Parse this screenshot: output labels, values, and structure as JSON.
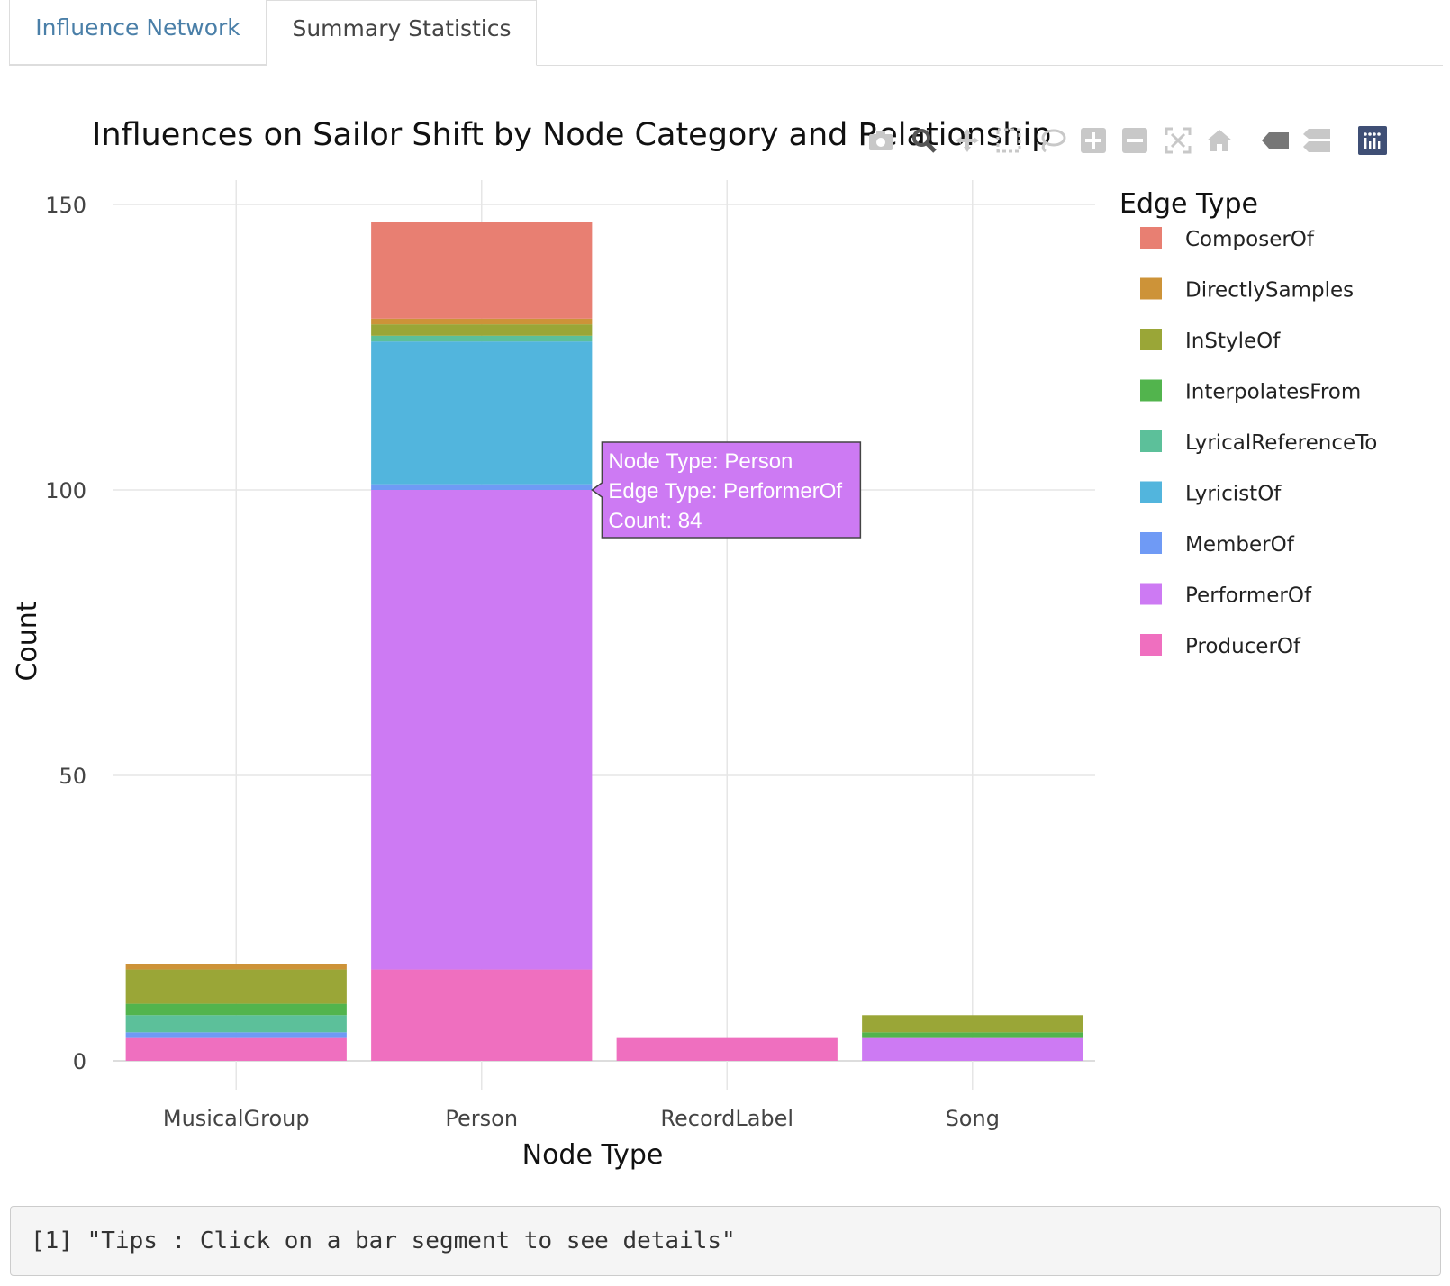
{
  "tabs": [
    {
      "label": "Influence Network",
      "active": false
    },
    {
      "label": "Summary Statistics",
      "active": true
    }
  ],
  "console_text": "[1] \"Tips : Click on a bar segment to see details\"",
  "toolbar": {
    "icons": [
      "camera-icon",
      "zoom-icon",
      "pan-icon",
      "box-select-icon",
      "lasso-select-icon",
      "zoom-in-icon",
      "zoom-out-icon",
      "autoscale-icon",
      "reset-axes-icon",
      "hover-closest-icon",
      "hover-compare-icon",
      "plotly-logo-icon"
    ]
  },
  "colors": {
    "ComposerOf": "#e87f72",
    "DirectlySamples": "#cd9338",
    "InStyleOf": "#9aa637",
    "InterpolatesFrom": "#52b44d",
    "LyricalReferenceTo": "#5cc09a",
    "LyricistOf": "#52b5dd",
    "MemberOf": "#6f9af5",
    "PerformerOf": "#cd7af3",
    "ProducerOf": "#ef6fbf"
  },
  "tooltip": {
    "line1": "Node Type: Person",
    "line2": "Edge Type: PerformerOf",
    "line3": "Count: 84",
    "category": "Person",
    "series": "PerformerOf"
  },
  "chart_data": {
    "type": "bar",
    "stacked": true,
    "title": "Influences on Sailor Shift by Node Category and Relationship",
    "xlabel": "Node Type",
    "ylabel": "Count",
    "legend_title": "Edge Type",
    "legend_position": "right",
    "grid": true,
    "ylim": [
      -5,
      153
    ],
    "yticks": [
      0,
      50,
      100,
      150
    ],
    "categories": [
      "MusicalGroup",
      "Person",
      "RecordLabel",
      "Song"
    ],
    "series": [
      {
        "name": "ProducerOf",
        "values": [
          4,
          16,
          4,
          0
        ]
      },
      {
        "name": "PerformerOf",
        "values": [
          0,
          84,
          0,
          4
        ]
      },
      {
        "name": "MemberOf",
        "values": [
          1,
          1,
          0,
          0
        ]
      },
      {
        "name": "LyricistOf",
        "values": [
          0,
          25,
          0,
          0
        ]
      },
      {
        "name": "LyricalReferenceTo",
        "values": [
          3,
          1,
          0,
          0
        ]
      },
      {
        "name": "InterpolatesFrom",
        "values": [
          2,
          0,
          0,
          1
        ]
      },
      {
        "name": "InStyleOf",
        "values": [
          6,
          2,
          0,
          3
        ]
      },
      {
        "name": "DirectlySamples",
        "values": [
          1,
          1,
          0,
          0
        ]
      },
      {
        "name": "ComposerOf",
        "values": [
          0,
          17,
          0,
          0
        ]
      }
    ],
    "legend_order": [
      "ComposerOf",
      "DirectlySamples",
      "InStyleOf",
      "InterpolatesFrom",
      "LyricalReferenceTo",
      "LyricistOf",
      "MemberOf",
      "PerformerOf",
      "ProducerOf"
    ]
  }
}
